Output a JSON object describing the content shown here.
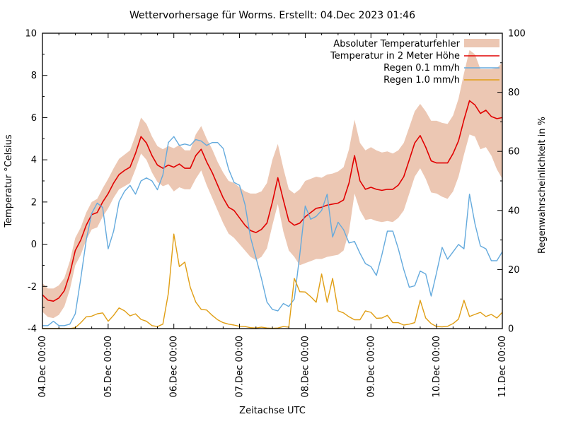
{
  "title": "Wettervorhersage für Worms. Erstellt: 04.Dec 2023 01:46",
  "xlabel": "Zeitachse UTC",
  "ylabel_left": "Temperatur °Celsius",
  "ylabel_right": "Regenwahrscheinlichkeit in %",
  "colors": {
    "band": "#ecc7b3",
    "temperature": "#e10000",
    "rain01": "#64aadd",
    "rain10": "#e09e14",
    "axis": "#000000",
    "background": "#ffffff"
  },
  "chart_data": {
    "type": "line",
    "title": "Wettervorhersage für Worms. Erstellt: 04.Dec 2023 01:46",
    "xlabel": "Zeitachse UTC",
    "ylabel_left": "Temperatur °Celsius",
    "ylabel_right": "Regenwahrscheinlichkeit in %",
    "ylim_left": [
      -4,
      10
    ],
    "ylim_right": [
      0,
      100
    ],
    "y_ticks_left": [
      -4,
      -2,
      0,
      2,
      4,
      6,
      8,
      10
    ],
    "y_ticks_right": [
      0,
      20,
      40,
      60,
      80,
      100
    ],
    "x_range_hours": [
      0,
      168
    ],
    "sample_step_hours": 2,
    "x_major_tick_every_hours": 24,
    "x_minor_tick_every_hours": 6,
    "x_tick_labels": [
      "04.Dec 00:00",
      "05.Dec 00:00",
      "06.Dec 00:00",
      "07.Dec 00:00",
      "08.Dec 00:00",
      "09.Dec 00:00",
      "10.Dec 00:00",
      "11.Dec 00:00"
    ],
    "grid": false,
    "legend_position": "top-right",
    "series": [
      {
        "name": "Absoluter Temperaturfehler",
        "type": "band",
        "axis": "left",
        "color": "#ecc7b3",
        "upper": [
          -1.85,
          -2.1,
          -2.1,
          -1.95,
          -1.6,
          -0.8,
          0.3,
          0.8,
          1.5,
          2.0,
          2.15,
          2.65,
          3.1,
          3.6,
          4.05,
          4.25,
          4.45,
          5.15,
          6.0,
          5.7,
          5.1,
          4.65,
          4.5,
          4.65,
          4.55,
          4.7,
          4.45,
          4.45,
          5.2,
          5.6,
          5.0,
          4.5,
          3.9,
          3.4,
          3.0,
          2.9,
          2.7,
          2.5,
          2.4,
          2.4,
          2.5,
          2.9,
          4.0,
          4.75,
          3.6,
          2.6,
          2.4,
          2.6,
          3.0,
          3.1,
          3.2,
          3.15,
          3.3,
          3.35,
          3.45,
          3.65,
          4.5,
          5.9,
          4.8,
          4.45,
          4.6,
          4.45,
          4.35,
          4.4,
          4.3,
          4.45,
          4.8,
          5.55,
          6.3,
          6.65,
          6.3,
          5.85,
          5.85,
          5.75,
          5.7,
          6.1,
          6.9,
          8.1,
          9.2,
          9.0,
          8.3,
          8.3,
          8.3,
          8.35,
          8.6
        ],
        "lower": [
          -3.2,
          -3.45,
          -3.5,
          -3.35,
          -2.95,
          -2.15,
          -1.0,
          -0.5,
          0.2,
          0.7,
          0.8,
          1.3,
          1.7,
          2.2,
          2.6,
          2.75,
          2.9,
          3.55,
          4.3,
          4.0,
          3.4,
          2.95,
          2.75,
          2.85,
          2.5,
          2.7,
          2.6,
          2.6,
          3.1,
          3.5,
          2.8,
          2.2,
          1.6,
          1.0,
          0.5,
          0.3,
          0.0,
          -0.3,
          -0.6,
          -0.75,
          -0.6,
          -0.2,
          0.9,
          1.9,
          0.6,
          -0.3,
          -0.6,
          -1.0,
          -0.9,
          -0.8,
          -0.7,
          -0.7,
          -0.6,
          -0.55,
          -0.5,
          -0.3,
          0.6,
          2.4,
          1.6,
          1.15,
          1.2,
          1.1,
          1.05,
          1.1,
          1.05,
          1.25,
          1.6,
          2.4,
          3.2,
          3.6,
          3.1,
          2.45,
          2.4,
          2.25,
          2.15,
          2.5,
          3.2,
          4.25,
          5.2,
          5.1,
          4.5,
          4.6,
          4.2,
          3.55,
          3.1
        ]
      },
      {
        "name": "Temperatur in 2 Meter Höhe",
        "type": "line",
        "axis": "left",
        "color": "#e10000",
        "values": [
          -2.4,
          -2.65,
          -2.7,
          -2.55,
          -2.2,
          -1.4,
          -0.3,
          0.2,
          0.9,
          1.4,
          1.5,
          2.0,
          2.4,
          2.9,
          3.3,
          3.5,
          3.65,
          4.3,
          5.1,
          4.8,
          4.2,
          3.75,
          3.6,
          3.75,
          3.65,
          3.8,
          3.6,
          3.6,
          4.2,
          4.5,
          3.9,
          3.4,
          2.8,
          2.2,
          1.75,
          1.6,
          1.25,
          0.9,
          0.65,
          0.55,
          0.7,
          1.0,
          2.0,
          3.15,
          2.1,
          1.1,
          0.9,
          1.0,
          1.3,
          1.5,
          1.7,
          1.75,
          1.85,
          1.9,
          1.95,
          2.1,
          2.9,
          4.2,
          3.0,
          2.6,
          2.7,
          2.6,
          2.55,
          2.6,
          2.6,
          2.8,
          3.2,
          4.0,
          4.8,
          5.15,
          4.6,
          3.95,
          3.85,
          3.85,
          3.85,
          4.3,
          4.9,
          5.9,
          6.8,
          6.6,
          6.2,
          6.35,
          6.05,
          5.95,
          6.0
        ]
      },
      {
        "name": "Regen 0.1 mm/h",
        "type": "line",
        "axis": "right",
        "color": "#64aadd",
        "values": [
          1,
          1,
          2.5,
          1,
          1,
          1.5,
          5,
          17,
          30,
          39,
          42.5,
          41,
          27,
          33,
          43,
          46.5,
          48.5,
          45.5,
          50,
          51,
          50,
          47,
          52,
          63,
          65,
          62,
          62.5,
          62,
          64,
          63.5,
          62,
          63,
          63,
          61,
          54,
          49.5,
          48.5,
          42,
          31,
          24,
          17,
          9,
          6.5,
          6,
          8.5,
          7.5,
          10,
          25,
          41.5,
          37,
          38,
          40,
          45.5,
          31,
          36,
          33.5,
          29,
          29.5,
          25.5,
          22,
          21,
          18,
          25,
          33,
          33,
          27,
          20,
          14,
          14.5,
          19.5,
          18.5,
          11,
          19,
          27.5,
          23.5,
          26,
          28.5,
          27,
          45.5,
          35.5,
          28,
          27,
          23,
          23,
          26
        ]
      },
      {
        "name": "Regen 1.0 mm/h",
        "type": "line",
        "axis": "right",
        "color": "#e09e14",
        "values": [
          0,
          0,
          0,
          0,
          0,
          0,
          0.3,
          2,
          4,
          4.2,
          5,
          5.3,
          2.5,
          4.5,
          7,
          6,
          4.3,
          5,
          3.1,
          2.5,
          1,
          0.7,
          1.5,
          12,
          32,
          21,
          22.5,
          14,
          9,
          6.5,
          6.3,
          4.5,
          3,
          2,
          1.5,
          1.2,
          0.8,
          0.7,
          0.3,
          0.2,
          0.5,
          0.2,
          0.1,
          0.2,
          0.7,
          0.5,
          17,
          12.5,
          12.4,
          10.8,
          8.9,
          18.5,
          8.9,
          17,
          6,
          5.3,
          4,
          3,
          3,
          6,
          5.5,
          3.5,
          3.6,
          4.5,
          2,
          2,
          1.2,
          1.5,
          2,
          9.6,
          3.6,
          1.7,
          0.7,
          0.6,
          0.8,
          1.7,
          3.2,
          9.6,
          4.1,
          4.8,
          5.5,
          4.1,
          4.8,
          3.6,
          5.5
        ]
      }
    ]
  }
}
